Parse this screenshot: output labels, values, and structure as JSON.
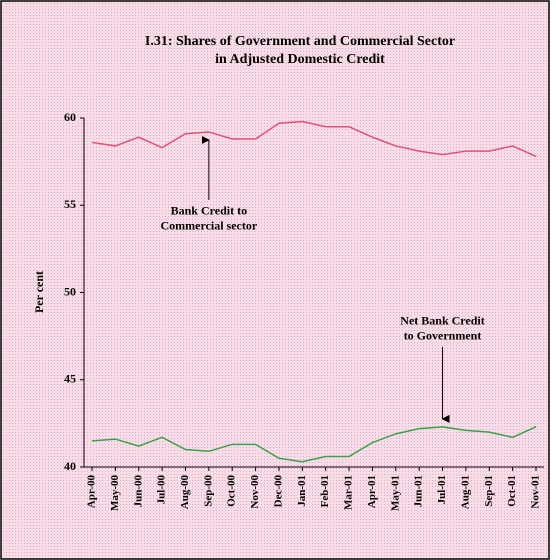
{
  "chart_data": {
    "type": "line",
    "title": "I.31: Shares of Government and Commercial Sector",
    "subtitle": "in Adjusted Domestic Credit",
    "ylabel": "Per cent",
    "categories": [
      "Apr-00",
      "May-00",
      "Jun-00",
      "Jul-00",
      "Aug-00",
      "Sep-00",
      "Oct-00",
      "Nov-00",
      "Dec-00",
      "Jan-01",
      "Feb-01",
      "Mar-01",
      "Apr-01",
      "May-01",
      "Jun-01",
      "Jul-01",
      "Aug-01",
      "Sep-01",
      "Oct-01",
      "Nov-01"
    ],
    "series": [
      {
        "color": "#e0507a",
        "values": [
          58.6,
          58.4,
          58.9,
          58.3,
          59.1,
          59.2,
          58.8,
          58.8,
          59.7,
          59.8,
          59.5,
          59.5,
          58.9,
          58.4,
          58.1,
          57.9,
          58.1,
          58.1,
          58.4,
          57.8
        ]
      },
      {
        "color": "#3aa050",
        "values": [
          41.5,
          41.6,
          41.2,
          41.7,
          41.0,
          40.9,
          41.3,
          41.3,
          40.5,
          40.3,
          40.6,
          40.6,
          41.4,
          41.9,
          42.2,
          42.3,
          42.1,
          42.0,
          41.7,
          42.3
        ]
      }
    ],
    "annotations": [
      {
        "lines": [
          "Bank Credit to",
          "Commercial sector"
        ],
        "x": "Sep-00",
        "y": 59.2
      },
      {
        "lines": [
          "Net Bank Credit",
          "to Government"
        ],
        "x": "Jul-01",
        "y": 42.3
      }
    ],
    "ylim": [
      40,
      60
    ],
    "yticks": [
      40,
      45,
      50,
      55,
      60
    ]
  }
}
